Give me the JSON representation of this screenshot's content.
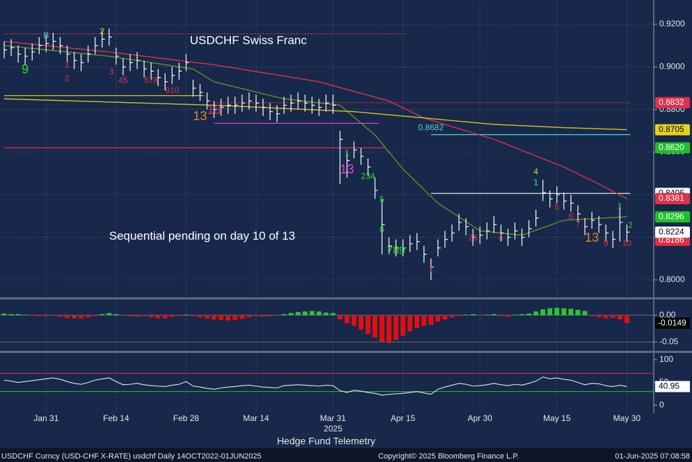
{
  "chart_data": [
    {
      "type": "ohlc",
      "title": "USDCHF Swiss Franc",
      "year_label": "2025",
      "categories": [
        null,
        null,
        null,
        null,
        null,
        null,
        "Jan 31",
        null,
        null,
        null,
        null,
        null,
        null,
        null,
        null,
        null,
        "Feb 14",
        null,
        null,
        null,
        null,
        null,
        null,
        null,
        null,
        null,
        "Feb 28",
        null,
        null,
        null,
        null,
        null,
        null,
        null,
        null,
        null,
        "Mar 14",
        null,
        null,
        null,
        null,
        null,
        null,
        null,
        null,
        null,
        null,
        "Mar 31",
        null,
        null,
        null,
        null,
        null,
        null,
        null,
        null,
        null,
        "Apr 15",
        null,
        null,
        null,
        null,
        null,
        null,
        null,
        null,
        null,
        null,
        "Apr 30",
        null,
        null,
        null,
        null,
        null,
        null,
        null,
        null,
        null,
        null,
        "May 15",
        null,
        null,
        null,
        null,
        null,
        null,
        null,
        null,
        null,
        "May 30"
      ],
      "high": [
        0.912,
        0.913,
        0.91,
        0.909,
        0.911,
        0.914,
        0.915,
        0.916,
        0.914,
        0.91,
        0.907,
        0.906,
        0.91,
        0.914,
        0.917,
        0.918,
        0.909,
        0.904,
        0.906,
        0.907,
        0.903,
        0.902,
        0.899,
        0.897,
        0.9,
        0.902,
        0.906,
        0.894,
        0.892,
        0.888,
        0.884,
        0.885,
        0.886,
        0.886,
        0.887,
        0.888,
        0.887,
        0.885,
        0.883,
        0.882,
        0.886,
        0.887,
        0.888,
        0.887,
        0.886,
        0.885,
        0.887,
        0.887,
        0.87,
        0.86,
        0.865,
        0.862,
        0.857,
        0.848,
        0.838,
        0.82,
        0.819,
        0.819,
        0.821,
        0.822,
        0.816,
        0.81,
        0.819,
        0.823,
        0.826,
        0.831,
        0.829,
        0.824,
        0.825,
        0.827,
        0.83,
        0.826,
        0.824,
        0.827,
        0.824,
        0.828,
        0.833,
        0.847,
        0.842,
        0.844,
        0.841,
        0.84,
        0.835,
        0.829,
        0.832,
        0.83,
        0.826,
        0.823,
        0.835,
        0.826
      ],
      "low": [
        0.904,
        0.905,
        0.902,
        0.901,
        0.903,
        0.906,
        0.907,
        0.908,
        0.906,
        0.902,
        0.899,
        0.898,
        0.902,
        0.906,
        0.909,
        0.91,
        0.901,
        0.896,
        0.898,
        0.899,
        0.895,
        0.894,
        0.891,
        0.889,
        0.892,
        0.894,
        0.898,
        0.886,
        0.884,
        0.88,
        0.876,
        0.877,
        0.878,
        0.878,
        0.879,
        0.88,
        0.879,
        0.877,
        0.875,
        0.874,
        0.878,
        0.879,
        0.88,
        0.879,
        0.878,
        0.877,
        0.879,
        0.878,
        0.845,
        0.848,
        0.857,
        0.854,
        0.849,
        0.838,
        0.812,
        0.812,
        0.811,
        0.811,
        0.813,
        0.814,
        0.808,
        0.8,
        0.811,
        0.815,
        0.818,
        0.823,
        0.821,
        0.816,
        0.817,
        0.819,
        0.822,
        0.818,
        0.816,
        0.819,
        0.816,
        0.82,
        0.825,
        0.837,
        0.834,
        0.836,
        0.833,
        0.832,
        0.827,
        0.821,
        0.824,
        0.822,
        0.818,
        0.815,
        0.818,
        0.818
      ],
      "close": [
        0.908,
        0.909,
        0.906,
        0.905,
        0.907,
        0.91,
        0.911,
        0.912,
        0.91,
        0.906,
        0.903,
        0.902,
        0.906,
        0.91,
        0.913,
        0.914,
        0.905,
        0.9,
        0.902,
        0.903,
        0.899,
        0.898,
        0.895,
        0.893,
        0.896,
        0.898,
        0.902,
        0.89,
        0.888,
        0.884,
        0.88,
        0.881,
        0.882,
        0.882,
        0.883,
        0.884,
        0.883,
        0.881,
        0.879,
        0.878,
        0.882,
        0.883,
        0.884,
        0.883,
        0.882,
        0.881,
        0.883,
        0.882,
        0.866,
        0.856,
        0.861,
        0.858,
        0.853,
        0.842,
        0.826,
        0.816,
        0.815,
        0.815,
        0.817,
        0.818,
        0.812,
        0.806,
        0.815,
        0.819,
        0.822,
        0.827,
        0.825,
        0.82,
        0.821,
        0.823,
        0.826,
        0.822,
        0.82,
        0.823,
        0.82,
        0.824,
        0.829,
        0.841,
        0.838,
        0.84,
        0.837,
        0.836,
        0.831,
        0.825,
        0.828,
        0.826,
        0.822,
        0.819,
        0.827,
        0.8224
      ],
      "bar_color": "#ffffff",
      "lines": [
        {
          "color": "#e0304a",
          "x": [
            0,
            15,
            30,
            45,
            55,
            60,
            70,
            80,
            85,
            89
          ],
          "values": [
            0.912,
            0.907,
            0.901,
            0.893,
            0.884,
            0.876,
            0.866,
            0.853,
            0.845,
            0.8381
          ]
        },
        {
          "color": "#6b8e23",
          "x": [
            0,
            15,
            27,
            30,
            40,
            48,
            53,
            57,
            62,
            68,
            74,
            80,
            89
          ],
          "values": [
            0.91,
            0.905,
            0.899,
            0.893,
            0.885,
            0.882,
            0.868,
            0.852,
            0.836,
            0.823,
            0.821,
            0.828,
            0.8296
          ]
        },
        {
          "color": "#d4c41c",
          "x": [
            0,
            30,
            50,
            60,
            70,
            80,
            89
          ],
          "values": [
            0.885,
            0.882,
            0.879,
            0.876,
            0.873,
            0.8715,
            0.8705
          ]
        }
      ],
      "levels": [
        {
          "value": 0.8832,
          "color": "#e0304a",
          "from": 30,
          "to": 89,
          "dash": true
        },
        {
          "value": 0.8682,
          "color": "#4fd3e8",
          "from": 61,
          "to": 89,
          "dash": false
        },
        {
          "value": 0.862,
          "color": "#e0304a",
          "from": 0,
          "to": 54,
          "dash": false
        },
        {
          "value": 0.8735,
          "color": "#e040e0",
          "from": 30,
          "to": 53,
          "dash": false
        },
        {
          "value": 0.8406,
          "color": "#dddddd",
          "from": 61,
          "to": 89,
          "dash": false
        },
        {
          "value": 0.9155,
          "color": "#e0304a",
          "from": 0,
          "to": 57,
          "dash": true
        },
        {
          "value": 0.8865,
          "color": "#d4c41c",
          "from": 0,
          "to": 28,
          "dash": false
        }
      ],
      "ylim": [
        0.7918,
        0.9314
      ],
      "yticks": [
        {
          "value": 0.92,
          "label": "0.9200"
        },
        {
          "value": 0.9,
          "label": "0.9000"
        },
        {
          "value": 0.88,
          "label": "0.8800"
        },
        {
          "value": 0.86,
          "label": "0.8600"
        },
        {
          "value": 0.84,
          "label": "0.8400"
        },
        {
          "value": 0.82,
          "label": "0.8200"
        },
        {
          "value": 0.8,
          "label": "0.8000"
        }
      ],
      "price_labels": [
        {
          "value": 0.8832,
          "color": "#e0304a",
          "text_color": "#ffffff"
        },
        {
          "value": 0.8705,
          "color": "#e6d21c",
          "text_color": "#000000"
        },
        {
          "value": 0.862,
          "label": "0.8620",
          "color": "#1fbf2a",
          "text_color": "#ffffff"
        },
        {
          "value": 0.8406,
          "color": "#ffffff",
          "text_color": "#000000"
        },
        {
          "value": 0.8381,
          "color": "#e0304a",
          "text_color": "#ffffff"
        },
        {
          "value": 0.8296,
          "color": "#1fbf2a",
          "text_color": "#ffffff"
        },
        {
          "value": 0.8186,
          "color": "#e0304a",
          "text_color": "#ffffff"
        },
        {
          "value": 0.8224,
          "color": "#ffffff",
          "text_color": "#000000"
        }
      ],
      "annotations": [
        {
          "text": "B",
          "color": "#4fd3e8",
          "x": 6,
          "y": 0.9145,
          "size": 12
        },
        {
          "text": "2",
          "color": "#e6d21c",
          "x": 14,
          "y": 0.9165,
          "size": 12
        },
        {
          "text": "9",
          "color": "#2fdc2f",
          "x": 3,
          "y": 0.8985,
          "size": 18
        },
        {
          "text": "1",
          "color": "#e0304a",
          "x": 9,
          "y": 0.9007,
          "size": 12
        },
        {
          "text": "2",
          "color": "#e0304a",
          "x": 9,
          "y": 0.8945,
          "size": 12
        },
        {
          "text": "3",
          "color": "#e0304a",
          "x": 15,
          "y": 0.8975,
          "size": 12
        },
        {
          "text": "45",
          "color": "#e0304a",
          "x": 17,
          "y": 0.8935,
          "size": 12
        },
        {
          "text": "678",
          "color": "#e0304a",
          "x": 21,
          "y": 0.8935,
          "size": 12
        },
        {
          "text": "910",
          "color": "#e0304a",
          "x": 24,
          "y": 0.8887,
          "size": 12
        },
        {
          "text": "13",
          "color": "#e08a1e",
          "x": 28,
          "y": 0.8765,
          "size": 18
        },
        {
          "text": "13",
          "color": "#e0304a",
          "x": 30,
          "y": 0.8795,
          "size": 18
        },
        {
          "text": "1",
          "color": "#2fdc2f",
          "x": 49,
          "y": 0.8595,
          "size": 12
        },
        {
          "text": "13",
          "color": "#e040e0",
          "x": 49,
          "y": 0.8515,
          "size": 18
        },
        {
          "text": "234",
          "color": "#2fdc2f",
          "x": 52,
          "y": 0.8485,
          "size": 12
        },
        {
          "text": "5",
          "color": "#2fdc2f",
          "x": 54,
          "y": 0.8375,
          "size": 12
        },
        {
          "text": "6",
          "color": "#2fdc2f",
          "x": 54,
          "y": 0.8235,
          "size": 12
        },
        {
          "text": "789",
          "color": "#2fdc2f",
          "x": 56,
          "y": 0.8135,
          "size": 16
        },
        {
          "text": "1",
          "color": "#e0304a",
          "x": 61,
          "y": 0.8045,
          "size": 12
        },
        {
          "text": "23",
          "color": "#e0304a",
          "x": 67,
          "y": 0.8195,
          "size": 12
        },
        {
          "text": "4",
          "color": "#e0304a",
          "x": 71,
          "y": 0.8195,
          "size": 12
        },
        {
          "text": "4",
          "color": "#e6d21c",
          "x": 76,
          "y": 0.8505,
          "size": 12
        },
        {
          "text": "1",
          "color": "#4fd3e8",
          "x": 76,
          "y": 0.8455,
          "size": 12
        },
        {
          "text": "5",
          "color": "#e0304a",
          "x": 79,
          "y": 0.834,
          "size": 12
        },
        {
          "text": "6",
          "color": "#e0304a",
          "x": 81,
          "y": 0.8295,
          "size": 12
        },
        {
          "text": "7",
          "color": "#e0304a",
          "x": 82,
          "y": 0.826,
          "size": 12
        },
        {
          "text": "13",
          "color": "#e08a1e",
          "x": 84,
          "y": 0.8195,
          "size": 18
        },
        {
          "text": "9",
          "color": "#e0304a",
          "x": 86,
          "y": 0.817,
          "size": 12
        },
        {
          "text": "10",
          "color": "#e0304a",
          "x": 89,
          "y": 0.817,
          "size": 12
        },
        {
          "text": "1",
          "color": "#2fdc2f",
          "x": 88,
          "y": 0.8345,
          "size": 12
        },
        {
          "text": "2",
          "color": "#2fdc2f",
          "x": 89.5,
          "y": 0.8255,
          "size": 12
        },
        {
          "text": "0.8682",
          "color": "#4fd3e8",
          "x": 61,
          "y": 0.8712,
          "size": 12
        },
        {
          "text": "Sequential pending on day 10 of 13",
          "color": "#ffffff",
          "x": 15,
          "y": 0.8204,
          "size": 17
        }
      ]
    },
    {
      "type": "bar",
      "color_up": "#2fc22f",
      "color_down": "#e01010",
      "values": [
        0.003,
        0.002,
        0.002,
        0.001,
        -0.001,
        -0.002,
        -0.002,
        -0.001,
        -0.003,
        -0.005,
        -0.006,
        -0.006,
        -0.004,
        -0.002,
        0.002,
        0.004,
        0.002,
        -0.001,
        -0.002,
        -0.003,
        -0.002,
        -0.004,
        -0.006,
        -0.006,
        -0.003,
        -0.002,
        0.001,
        -0.002,
        -0.004,
        -0.006,
        -0.008,
        -0.009,
        -0.01,
        -0.009,
        -0.007,
        -0.004,
        -0.002,
        -0.003,
        -0.002,
        -0.001,
        0.002,
        0.004,
        0.006,
        0.007,
        0.008,
        0.007,
        0.005,
        0.004,
        -0.008,
        -0.015,
        -0.02,
        -0.027,
        -0.035,
        -0.042,
        -0.05,
        -0.052,
        -0.046,
        -0.038,
        -0.03,
        -0.024,
        -0.02,
        -0.018,
        -0.012,
        -0.008,
        -0.004,
        -0.002,
        0.001,
        0.002,
        -0.001,
        0.001,
        0.002,
        -0.002,
        -0.003,
        0.001,
        0.002,
        0.003,
        0.007,
        0.011,
        0.013,
        0.014,
        0.013,
        0.012,
        0.01,
        0.008,
        -0.002,
        -0.004,
        -0.006,
        -0.005,
        -0.008,
        -0.0149
      ],
      "ylim": [
        -0.0667,
        0.0295
      ],
      "yticks": [
        {
          "value": 0,
          "label": "0.00"
        },
        {
          "value": -0.05,
          "label": "-0.05"
        }
      ],
      "last_label": -0.0149
    },
    {
      "type": "line",
      "color": "#e8e8e8",
      "values": [
        55,
        53,
        50,
        52,
        54,
        56,
        58,
        60,
        57,
        52,
        48,
        46,
        50,
        55,
        58,
        60,
        52,
        45,
        46,
        48,
        45,
        43,
        42,
        41,
        44,
        46,
        52,
        42,
        40,
        37,
        35,
        38,
        40,
        41,
        43,
        44,
        42,
        40,
        39,
        38,
        43,
        44,
        45,
        44,
        43,
        42,
        44,
        43,
        32,
        28,
        33,
        31,
        28,
        26,
        22,
        24,
        25,
        26,
        28,
        30,
        27,
        24,
        35,
        40,
        44,
        48,
        46,
        42,
        43,
        45,
        48,
        45,
        43,
        46,
        44,
        48,
        53,
        62,
        58,
        60,
        57,
        55,
        50,
        45,
        48,
        47,
        43,
        41,
        44,
        40.95
      ],
      "ylim": [
        -18,
        115
      ],
      "yticks": [
        100,
        50,
        0
      ],
      "levels": [
        {
          "value": 70,
          "color": "#e0304a"
        },
        {
          "value": 30,
          "color": "#2fc22f"
        }
      ],
      "last_label": 40.95
    }
  ],
  "footer": {
    "caption": "Hedge Fund Telemetry",
    "left": "USDCHF Curncy (USD-CHF X-RATE) usdchf  Daily 14OCT2022-01JUN2025",
    "center": "Copyright© 2025 Bloomberg Finance L.P.",
    "right": "01-Jun-2025 07:08:58"
  }
}
